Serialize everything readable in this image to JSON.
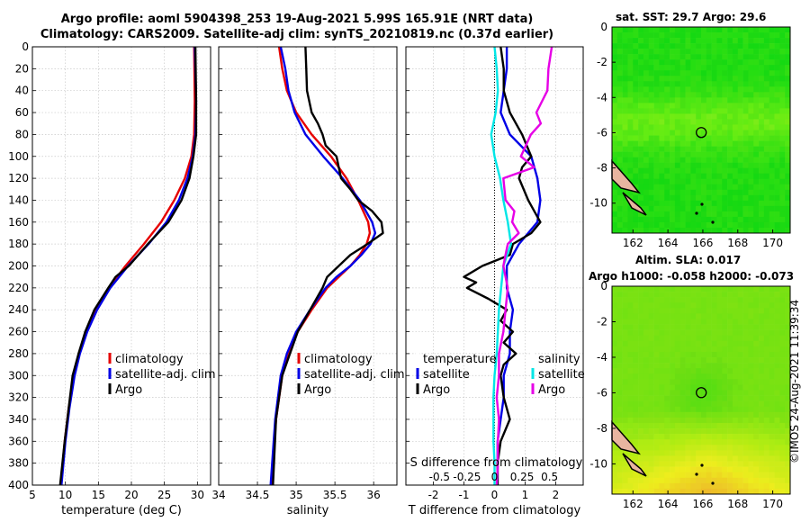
{
  "header": {
    "title_line1": "Argo profile: aoml 5904398_253 19-Aug-2021 5.99S 165.91E (NRT data)",
    "title_line2": "Climatology: CARS2009. Satellite-adj clim: synTS_20210819.nc (0.37d earlier)"
  },
  "colors": {
    "climatology": "#e60000",
    "satellite": "#0000e6",
    "argo": "#000000",
    "salinity_diff": "#e600e6",
    "salinity_satellite": "#00e6e6"
  },
  "chart_data": [
    {
      "type": "line",
      "name": "temperature",
      "xlabel": "temperature (deg C)",
      "ylabel": "",
      "xlim": [
        5,
        32
      ],
      "ylim": [
        0,
        400
      ],
      "xticks": [
        5,
        10,
        15,
        20,
        25,
        30
      ],
      "yticks": [
        0,
        20,
        40,
        60,
        80,
        100,
        120,
        140,
        160,
        180,
        200,
        220,
        240,
        260,
        280,
        300,
        320,
        340,
        360,
        380,
        400
      ],
      "legend": {
        "position": "right",
        "labels": [
          "climatology",
          "satellite-adj. clim",
          "Argo"
        ]
      },
      "series": [
        {
          "name": "climatology",
          "depth": [
            0,
            50,
            80,
            100,
            120,
            140,
            160,
            180,
            200,
            220,
            240,
            260,
            280,
            300,
            330,
            360,
            400
          ],
          "values": [
            29.5,
            29.6,
            29.5,
            29.1,
            28.1,
            26.5,
            24.5,
            21.9,
            19.1,
            16.6,
            14.6,
            13.1,
            12.1,
            11.3,
            10.5,
            9.9,
            9.3
          ]
        },
        {
          "name": "satellite-adj. clim",
          "depth": [
            0,
            50,
            80,
            100,
            120,
            140,
            160,
            180,
            200,
            220,
            240,
            260,
            280,
            300,
            330,
            360,
            400
          ],
          "values": [
            29.6,
            29.8,
            29.7,
            29.3,
            28.5,
            27.2,
            25.3,
            22.6,
            19.5,
            16.8,
            14.8,
            13.3,
            12.2,
            11.4,
            10.6,
            10.0,
            9.4
          ]
        },
        {
          "name": "Argo",
          "depth": [
            0,
            50,
            80,
            100,
            120,
            140,
            160,
            180,
            200,
            210,
            220,
            240,
            260,
            280,
            300,
            330,
            360,
            400
          ],
          "values": [
            29.7,
            29.8,
            29.8,
            29.4,
            28.8,
            27.6,
            25.6,
            22.5,
            19.6,
            17.6,
            16.5,
            14.4,
            13.0,
            12.0,
            11.1,
            10.5,
            9.9,
            9.2
          ]
        }
      ]
    },
    {
      "type": "line",
      "name": "salinity",
      "xlabel": "salinity",
      "ylabel": "",
      "xlim": [
        34.0,
        36.3
      ],
      "ylim": [
        0,
        400
      ],
      "xticks": [
        34,
        34.5,
        35,
        35.5,
        36
      ],
      "xticklabels": [
        "34",
        "34.5",
        "35",
        "35.5",
        "36"
      ],
      "legend": {
        "position": "right",
        "labels": [
          "climatology",
          "satellite-adj. clim",
          "Argo"
        ]
      },
      "series": [
        {
          "name": "climatology",
          "depth": [
            0,
            20,
            40,
            60,
            80,
            100,
            120,
            140,
            160,
            170,
            180,
            190,
            200,
            210,
            220,
            240,
            260,
            280,
            300,
            340,
            400
          ],
          "values": [
            34.78,
            34.82,
            34.88,
            35.0,
            35.2,
            35.45,
            35.65,
            35.8,
            35.93,
            35.95,
            35.91,
            35.82,
            35.7,
            35.55,
            35.4,
            35.2,
            35.02,
            34.9,
            34.82,
            34.74,
            34.68
          ]
        },
        {
          "name": "satellite-adj. clim",
          "depth": [
            0,
            20,
            40,
            60,
            80,
            100,
            120,
            140,
            160,
            170,
            180,
            190,
            200,
            210,
            220,
            240,
            260,
            280,
            300,
            340,
            400
          ],
          "values": [
            34.8,
            34.86,
            34.9,
            34.98,
            35.12,
            35.35,
            35.6,
            35.82,
            35.98,
            36.02,
            35.96,
            35.84,
            35.7,
            35.52,
            35.38,
            35.18,
            35.0,
            34.88,
            34.8,
            34.73,
            34.67
          ]
        },
        {
          "name": "Argo",
          "depth": [
            0,
            20,
            40,
            60,
            70,
            80,
            90,
            100,
            110,
            120,
            130,
            140,
            150,
            160,
            170,
            180,
            190,
            200,
            210,
            220,
            240,
            260,
            280,
            300,
            320,
            340,
            400
          ],
          "values": [
            35.12,
            35.13,
            35.14,
            35.2,
            35.28,
            35.34,
            35.38,
            35.52,
            35.55,
            35.58,
            35.7,
            35.8,
            35.98,
            36.1,
            36.12,
            35.92,
            35.7,
            35.55,
            35.4,
            35.34,
            35.18,
            35.02,
            34.92,
            34.82,
            34.78,
            34.74,
            34.7
          ]
        }
      ]
    },
    {
      "type": "line",
      "name": "difference",
      "xlabel": "T difference from climatology",
      "xlabel_top": "S difference from climatology",
      "xlim": [
        -2.9,
        2.9
      ],
      "ylim": [
        0,
        400
      ],
      "xticks": [
        -2,
        -1,
        0,
        1,
        2
      ],
      "xticklabels": [
        "-2",
        "-1",
        "0",
        "1",
        "2"
      ],
      "sticks": [
        -0.5,
        -0.25,
        0,
        0.25,
        0.5
      ],
      "sticklabels": [
        "-0.5",
        "-0.25",
        "0",
        "0.25",
        "0.5"
      ],
      "legend": {
        "position": "right",
        "labels": [
          "temperature",
          "satellite",
          "Argo",
          "salinity",
          "satellite",
          "Argo"
        ]
      },
      "series": [
        {
          "name": "temperature satellite",
          "depth": [
            0,
            20,
            40,
            60,
            80,
            100,
            120,
            140,
            160,
            180,
            200,
            220,
            240,
            260,
            280,
            300,
            320,
            340,
            360,
            380,
            400
          ],
          "values": [
            0.4,
            0.4,
            0.3,
            0.2,
            0.5,
            1.2,
            1.4,
            1.5,
            1.4,
            0.8,
            0.4,
            0.4,
            0.6,
            0.5,
            0.5,
            0.3,
            0.3,
            0.2,
            0.1,
            0.1,
            0.1
          ]
        },
        {
          "name": "temperature Argo",
          "depth": [
            0,
            20,
            40,
            60,
            80,
            100,
            110,
            120,
            140,
            160,
            170,
            180,
            190,
            200,
            210,
            215,
            220,
            230,
            240,
            250,
            260,
            270,
            280,
            290,
            300,
            320,
            340,
            360,
            380,
            400
          ],
          "values": [
            0.2,
            0.3,
            0.3,
            0.5,
            0.9,
            1.2,
            0.9,
            0.8,
            1.1,
            1.5,
            1.2,
            0.6,
            0.5,
            -0.4,
            -1.0,
            -0.6,
            -0.9,
            -0.2,
            0.4,
            0.2,
            0.6,
            0.3,
            0.7,
            0.3,
            0.2,
            0.3,
            0.5,
            0.2,
            0.1,
            0.1
          ]
        },
        {
          "name": "salinity satellite",
          "depth": [
            0,
            20,
            40,
            60,
            80,
            100,
            120,
            140,
            160,
            180,
            200,
            220,
            240,
            260,
            280,
            300,
            320,
            340,
            360,
            380,
            400
          ],
          "values": [
            0.0,
            0.02,
            0.03,
            0.01,
            -0.03,
            0.0,
            0.05,
            0.08,
            0.12,
            0.15,
            0.08,
            0.06,
            0.04,
            0.03,
            0.02,
            0.0,
            -0.01,
            -0.01,
            -0.01,
            0.0,
            0.0
          ]
        },
        {
          "name": "salinity Argo",
          "depth": [
            0,
            20,
            40,
            60,
            70,
            80,
            100,
            110,
            120,
            140,
            150,
            160,
            170,
            180,
            190,
            200,
            220,
            240,
            260,
            280,
            300,
            320,
            340,
            360,
            380,
            400
          ],
          "values": [
            0.52,
            0.49,
            0.48,
            0.38,
            0.42,
            0.33,
            0.24,
            0.36,
            0.08,
            0.1,
            0.18,
            0.16,
            0.22,
            0.12,
            0.1,
            0.08,
            0.12,
            0.1,
            0.08,
            0.04,
            0.04,
            0.02,
            0.04,
            0.03,
            0.03,
            0.02
          ]
        }
      ]
    }
  ],
  "maps": {
    "sst": {
      "title": "sat. SST: 29.7 Argo: 29.6",
      "xticks": [
        "162",
        "164",
        "166",
        "168",
        "170"
      ],
      "yticks": [
        "0",
        "-2",
        "-4",
        "-6",
        "-8",
        "-10"
      ]
    },
    "sla": {
      "title_line1": "Altim. SLA: 0.017",
      "title_line2": "Argo h1000: -0.058 h2000: -0.073",
      "xticks": [
        "162",
        "164",
        "166",
        "168",
        "170"
      ],
      "yticks": [
        "0",
        "-2",
        "-4",
        "-6",
        "-8",
        "-10"
      ]
    }
  },
  "footer": {
    "timestamp": "©IMOS 24-Aug-2021 11:39:34"
  }
}
